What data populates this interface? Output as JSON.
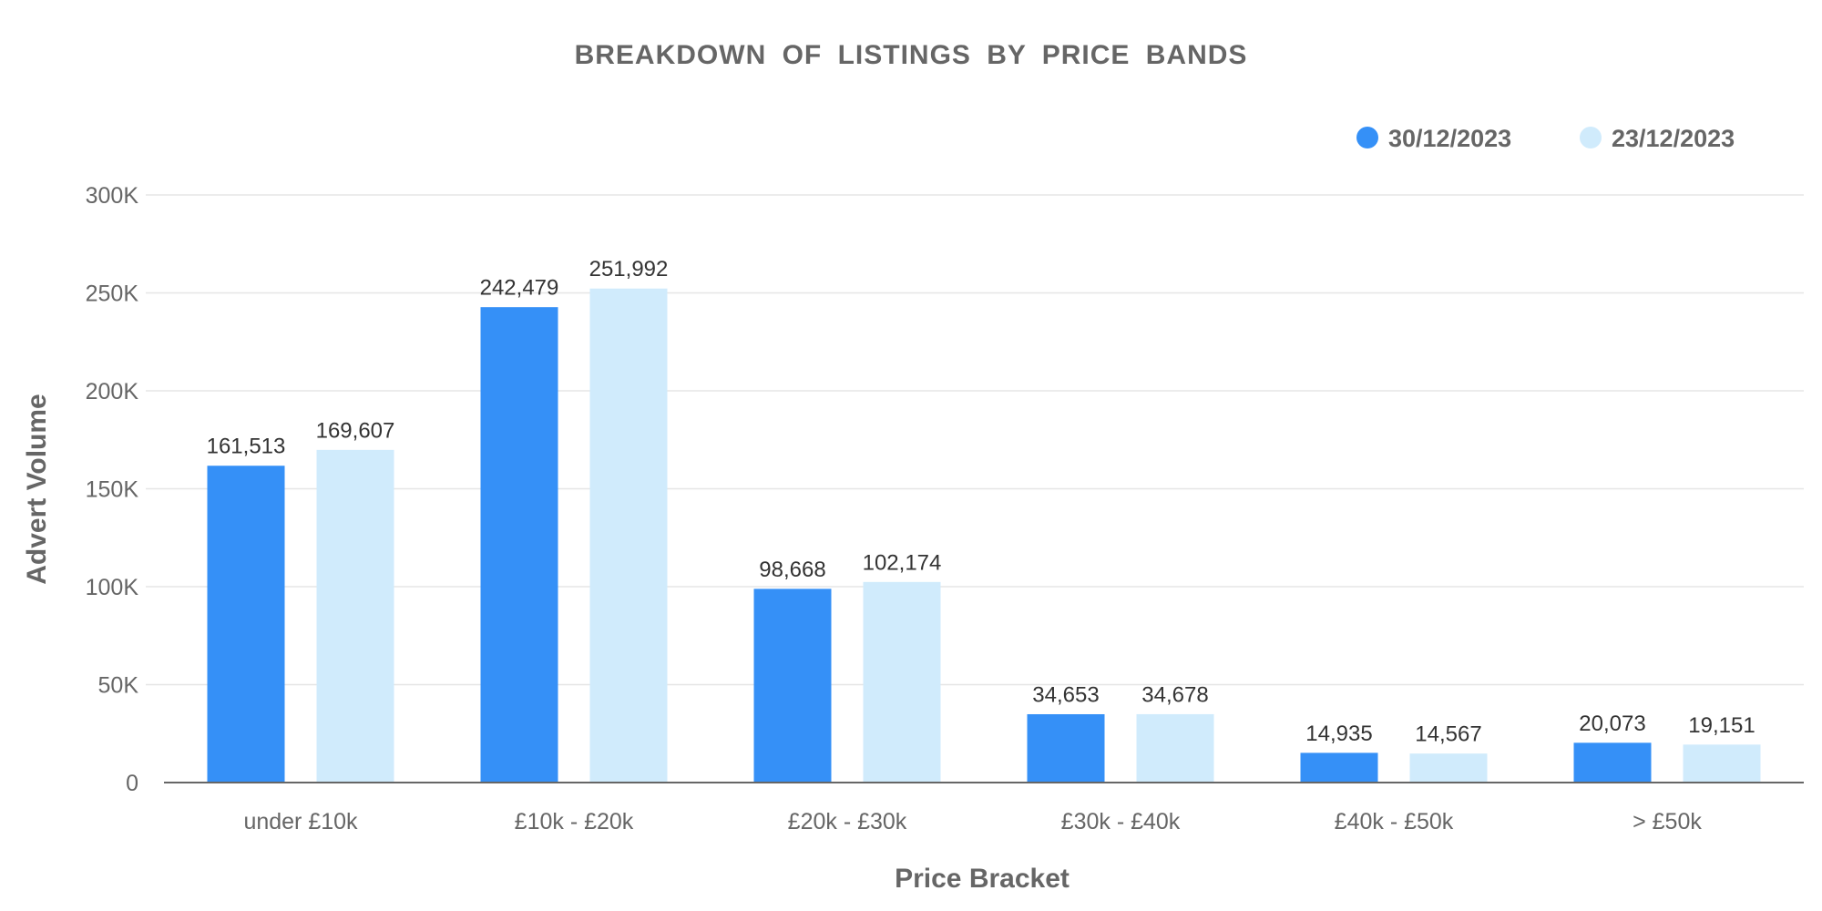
{
  "chart_data": {
    "type": "bar",
    "title": "BREAKDOWN OF LISTINGS BY PRICE BANDS",
    "xlabel": "Price Bracket",
    "ylabel": "Advert Volume",
    "categories": [
      "under £10k",
      "£10k - £20k",
      "£20k - £30k",
      "£30k - £40k",
      "£40k - £50k",
      "> £50k"
    ],
    "series": [
      {
        "name": "30/12/2023",
        "color": "#3590f7",
        "values": [
          161513,
          242479,
          98668,
          34653,
          14935,
          20073
        ],
        "labels": [
          "161,513",
          "242,479",
          "98,668",
          "34,653",
          "14,935",
          "20,073"
        ]
      },
      {
        "name": "23/12/2023",
        "color": "#d0ebfc",
        "values": [
          169607,
          251992,
          102174,
          34678,
          14567,
          19151
        ],
        "labels": [
          "169,607",
          "251,992",
          "102,174",
          "34,678",
          "14,567",
          "19,151"
        ]
      }
    ],
    "ylim": [
      0,
      300000
    ],
    "yticks": [
      0,
      50000,
      100000,
      150000,
      200000,
      250000,
      300000
    ],
    "ytick_labels": [
      "0",
      "50K",
      "100K",
      "150K",
      "200K",
      "250K",
      "300K"
    ],
    "grid": true,
    "legend_position": "top-right"
  }
}
